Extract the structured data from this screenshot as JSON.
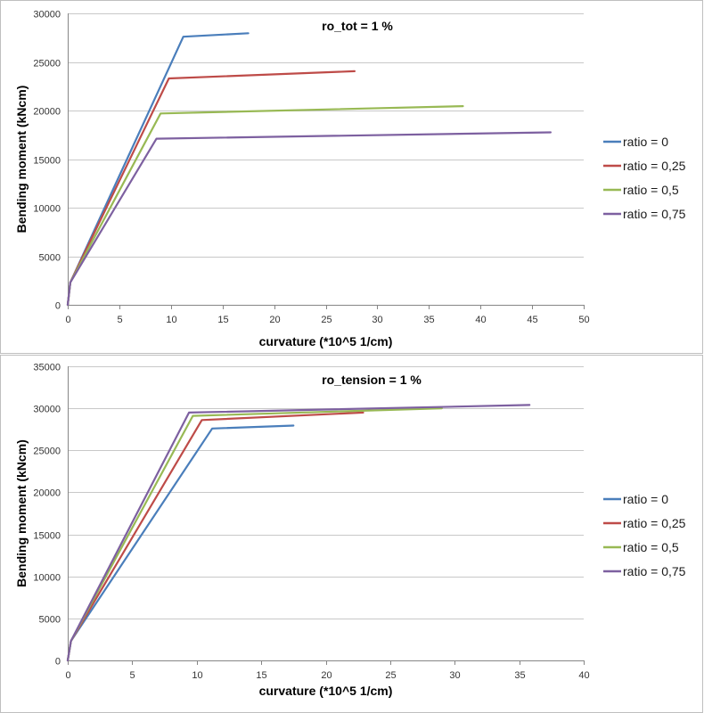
{
  "chart_data": [
    {
      "type": "line",
      "title": "ro_tot = 1 %",
      "xlabel": "curvature (*10^5 1/cm)",
      "ylabel": "Bending moment (kNcm)",
      "xlim": [
        0,
        50
      ],
      "ylim": [
        0,
        30000
      ],
      "xticks": [
        0,
        5,
        10,
        15,
        20,
        25,
        30,
        35,
        40,
        45,
        50
      ],
      "yticks": [
        0,
        5000,
        10000,
        15000,
        20000,
        25000,
        30000
      ],
      "grid": true,
      "legend": "right",
      "series": [
        {
          "name": "ratio = 0",
          "color": "#4a7ebb",
          "points": [
            [
              0,
              0
            ],
            [
              0.25,
              2300
            ],
            [
              11.2,
              27600
            ],
            [
              17.5,
              27950
            ]
          ]
        },
        {
          "name": "ratio = 0,25",
          "color": "#be4b48",
          "points": [
            [
              0,
              0
            ],
            [
              0.25,
              2300
            ],
            [
              9.8,
              23300
            ],
            [
              27.8,
              24050
            ]
          ]
        },
        {
          "name": "ratio = 0,5",
          "color": "#98b954",
          "points": [
            [
              0,
              0
            ],
            [
              0.25,
              2300
            ],
            [
              9.0,
              19700
            ],
            [
              38.3,
              20450
            ]
          ]
        },
        {
          "name": "ratio = 0,75",
          "color": "#7d60a0",
          "points": [
            [
              0,
              0
            ],
            [
              0.25,
              2300
            ],
            [
              8.6,
              17100
            ],
            [
              46.8,
              17750
            ]
          ]
        }
      ]
    },
    {
      "type": "line",
      "title": "ro_tension = 1 %",
      "xlabel": "curvature (*10^5 1/cm)",
      "ylabel": "Bending moment (kNcm)",
      "xlim": [
        0,
        40
      ],
      "ylim": [
        0,
        35000
      ],
      "xticks": [
        0,
        5,
        10,
        15,
        20,
        25,
        30,
        35,
        40
      ],
      "yticks": [
        0,
        5000,
        10000,
        15000,
        20000,
        25000,
        30000,
        35000
      ],
      "grid": true,
      "legend": "right",
      "series": [
        {
          "name": "ratio = 0",
          "color": "#4a7ebb",
          "points": [
            [
              0,
              0
            ],
            [
              0.25,
              2300
            ],
            [
              11.2,
              27600
            ],
            [
              17.5,
              27950
            ]
          ]
        },
        {
          "name": "ratio = 0,25",
          "color": "#be4b48",
          "points": [
            [
              0,
              0
            ],
            [
              0.25,
              2300
            ],
            [
              10.4,
              28600
            ],
            [
              22.9,
              29500
            ]
          ]
        },
        {
          "name": "ratio = 0,5",
          "color": "#98b954",
          "points": [
            [
              0,
              0
            ],
            [
              0.25,
              2300
            ],
            [
              9.7,
              29100
            ],
            [
              29.0,
              30000
            ]
          ]
        },
        {
          "name": "ratio = 0,75",
          "color": "#7d60a0",
          "points": [
            [
              0,
              0
            ],
            [
              0.25,
              2300
            ],
            [
              9.4,
              29500
            ],
            [
              35.8,
              30400
            ]
          ]
        }
      ]
    }
  ]
}
